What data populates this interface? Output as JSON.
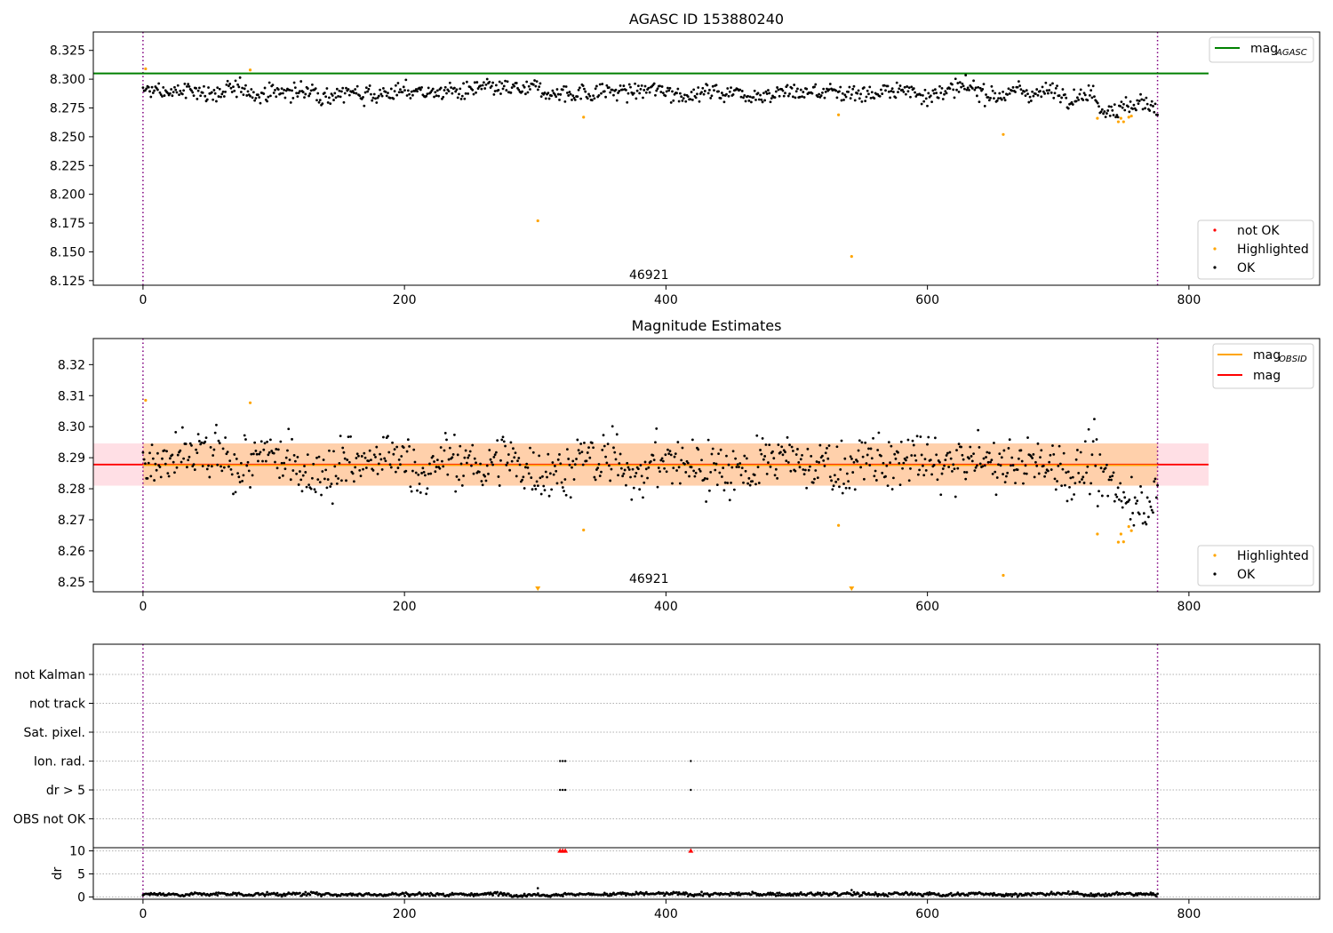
{
  "chart_data": [
    {
      "type": "scatter",
      "title": "AGASC ID 153880240",
      "xlim": [
        -38,
        900
      ],
      "ylim": [
        8.121,
        8.341
      ],
      "x_ticks": [
        0,
        200,
        400,
        600,
        800
      ],
      "y_ticks": [
        8.125,
        8.15,
        8.175,
        8.2,
        8.225,
        8.25,
        8.275,
        8.3,
        8.325
      ],
      "y_tick_labels": [
        "8.125",
        "8.150",
        "8.175",
        "8.200",
        "8.225",
        "8.250",
        "8.275",
        "8.300",
        "8.325"
      ],
      "obsid_label": "46921",
      "obsid_label_position": [
        387,
        8.125
      ],
      "obs_boundaries": [
        0,
        776
      ],
      "mag_agasc": {
        "value": 8.305,
        "x_range": [
          -38,
          815
        ],
        "color": "#008000"
      },
      "legend_top": [
        {
          "label": "mag",
          "sub": "AGASC",
          "color": "#008000",
          "kind": "line"
        }
      ],
      "legend_bottom": [
        {
          "label": "not OK",
          "color": "#ff0000",
          "kind": "marker"
        },
        {
          "label": "Highlighted",
          "color": "#ffa500",
          "kind": "marker"
        },
        {
          "label": "OK",
          "color": "#000000",
          "kind": "marker"
        }
      ],
      "points_ok": {
        "x_start": 0,
        "x_end": 776,
        "count": 900,
        "band_center": 8.289,
        "spread": 0.006,
        "color": "#000000",
        "dip_region": {
          "from": 730,
          "to": 776,
          "offset": -0.012
        }
      },
      "points_highlighted": {
        "color": "#ffa500",
        "x": [
          2,
          82,
          302,
          337,
          532,
          542,
          658,
          730,
          746,
          748,
          750,
          754,
          756
        ],
        "y": [
          8.309,
          8.308,
          8.177,
          8.267,
          8.269,
          8.146,
          8.252,
          8.266,
          8.263,
          8.266,
          8.263,
          8.267,
          8.268
        ]
      },
      "grid": false
    },
    {
      "type": "scatter",
      "title": "Magnitude Estimates",
      "xlim": [
        -38,
        900
      ],
      "ylim": [
        8.2468,
        8.3284
      ],
      "x_ticks": [
        0,
        200,
        400,
        600,
        800
      ],
      "y_ticks": [
        8.25,
        8.26,
        8.27,
        8.28,
        8.29,
        8.3,
        8.31,
        8.32
      ],
      "y_tick_labels": [
        "8.25",
        "8.26",
        "8.27",
        "8.28",
        "8.29",
        "8.30",
        "8.31",
        "8.32"
      ],
      "obsid_label": "46921",
      "obsid_label_position": [
        387,
        8.25
      ],
      "obs_boundaries": [
        0,
        776
      ],
      "mag": {
        "value": 8.2878,
        "x_range": [
          -38,
          815
        ],
        "color": "#ff0000",
        "band": [
          8.281,
          8.2946
        ],
        "band_color": "#ffc0cb"
      },
      "mag_obsid": {
        "value": 8.2876,
        "x_range": [
          0,
          776
        ],
        "color": "#ffa500",
        "band": [
          8.281,
          8.2946
        ]
      },
      "legend_top": [
        {
          "label": "mag",
          "sub": "OBSID",
          "color": "#ffa500",
          "kind": "line"
        },
        {
          "label": "mag",
          "sub": "",
          "color": "#ff0000",
          "kind": "line"
        }
      ],
      "legend_bottom": [
        {
          "label": "Highlighted",
          "color": "#ffa500",
          "kind": "marker"
        },
        {
          "label": "OK",
          "color": "#000000",
          "kind": "marker"
        }
      ],
      "points_ok": {
        "x_start": 0,
        "x_end": 776,
        "count": 900,
        "band_center": 8.2878,
        "spread": 0.0068,
        "color": "#000000",
        "dip_region": {
          "from": 730,
          "to": 776,
          "offset": -0.009
        }
      },
      "points_highlighted": {
        "color": "#ffa500",
        "x": [
          2,
          82,
          337,
          532,
          658,
          730,
          746,
          748,
          750,
          754,
          756
        ],
        "y": [
          8.3085,
          8.3077,
          8.2667,
          8.2682,
          8.2521,
          8.2654,
          8.2628,
          8.2654,
          8.2629,
          8.2678,
          8.2665
        ]
      },
      "off_scale_markers": {
        "color": "#ffa500",
        "x": [
          302,
          542
        ]
      },
      "grid": false
    },
    {
      "type": "scatter",
      "title": "",
      "xlim": [
        -38,
        900
      ],
      "flag_rows": [
        "not Kalman",
        "not track",
        "Sat. pixel.",
        "Ion. rad.",
        "dr > 5",
        "OBS not OK"
      ],
      "obs_boundaries": [
        0,
        776
      ],
      "flag_points": {
        "Ion. rad.": [
          319,
          321,
          323,
          419
        ],
        "dr > 5": [
          319,
          321,
          323,
          419
        ]
      },
      "grid": "horizontal dotted"
    },
    {
      "type": "scatter",
      "title": "",
      "ylabel": "dr",
      "xlim": [
        -38,
        900
      ],
      "ylim": [
        -0.5,
        10.5
      ],
      "x_ticks": [
        0,
        200,
        400,
        600,
        800
      ],
      "x_tick_labels": [
        "0",
        "200",
        "400",
        "600",
        "800"
      ],
      "y_ticks": [
        0,
        5,
        10
      ],
      "y_tick_labels": [
        "0",
        "5",
        "10"
      ],
      "obs_boundaries": [
        0,
        776
      ],
      "points_ok": {
        "x_start": 0,
        "x_end": 776,
        "count": 900,
        "band_center": 0.6,
        "spread": 0.3,
        "color": "#000000"
      },
      "points_not_ok": {
        "color": "#ff0000",
        "x": [
          319,
          321,
          323,
          419
        ],
        "y": [
          10,
          10,
          10,
          10
        ]
      },
      "extra_points": {
        "x": [
          302,
          542
        ],
        "y": [
          1.9,
          1.5
        ]
      },
      "grid": "horizontal dotted"
    }
  ]
}
